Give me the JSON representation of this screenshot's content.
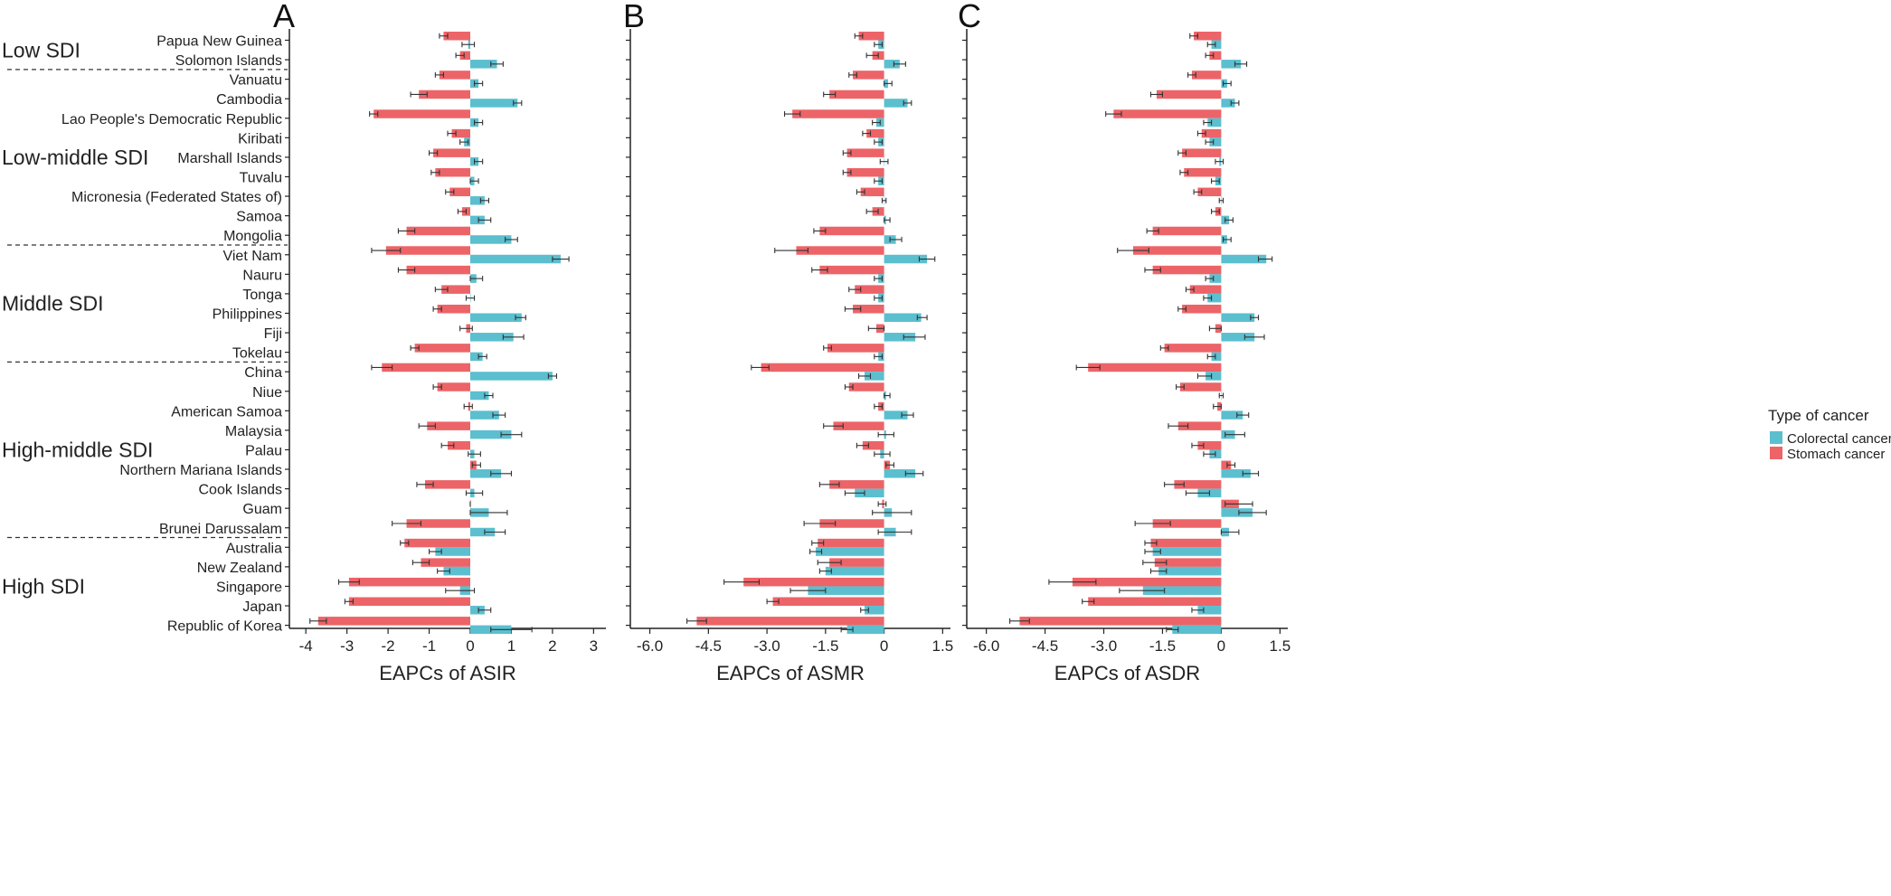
{
  "colors": {
    "colorectal": "#5bbfcf",
    "stomach": "#ec6468"
  },
  "countries": [
    "Papua New Guinea",
    "Solomon Islands",
    "Vanuatu",
    "Cambodia",
    "Lao People's Democratic Republic",
    "Kiribati",
    "Marshall Islands",
    "Tuvalu",
    "Micronesia (Federated States of)",
    "Samoa",
    "Mongolia",
    "Viet Nam",
    "Nauru",
    "Tonga",
    "Philippines",
    "Fiji",
    "Tokelau",
    "China",
    "Niue",
    "American Samoa",
    "Malaysia",
    "Palau",
    "Northern Mariana Islands",
    "Cook Islands",
    "Guam",
    "Brunei Darussalam",
    "Australia",
    "New Zealand",
    "Singapore",
    "Japan",
    "Republic of Korea"
  ],
  "sdi_groups": [
    {
      "label": "Low SDI",
      "first": 0,
      "last": 1
    },
    {
      "label": "Low-middle SDI",
      "first": 2,
      "last": 10
    },
    {
      "label": "Middle SDI",
      "first": 11,
      "last": 16
    },
    {
      "label": "High-middle SDI",
      "first": 17,
      "last": 25
    },
    {
      "label": "High SDI",
      "first": 26,
      "last": 30
    }
  ],
  "legend": {
    "title": "Type of cancer",
    "items": [
      {
        "label": "Colorectal cancer",
        "key": "colorectal"
      },
      {
        "label": "Stomach cancer",
        "key": "stomach"
      }
    ]
  },
  "chart_data": [
    {
      "type": "bar",
      "panel": "A",
      "xlabel": "EAPCs of ASIR",
      "xlim": [
        -4.4,
        3.3
      ],
      "ticks": [
        -4,
        -3,
        -2,
        -1,
        0,
        1,
        2,
        3
      ],
      "tick_labels": [
        "-4",
        "-3",
        "-2",
        "-1",
        "0",
        "1",
        "2",
        "3"
      ],
      "grid": false,
      "series": [
        {
          "name": "Stomach cancer",
          "values": [
            -0.65,
            -0.25,
            -0.75,
            -1.25,
            -2.35,
            -0.45,
            -0.9,
            -0.85,
            -0.5,
            -0.2,
            -1.55,
            -2.05,
            -1.55,
            -0.7,
            -0.8,
            -0.1,
            -1.35,
            -2.15,
            -0.8,
            -0.05,
            -1.05,
            -0.55,
            0.15,
            -1.1,
            0.0,
            -1.55,
            -1.6,
            -1.2,
            -2.95,
            -2.95,
            -3.7
          ],
          "err_low": [
            -0.75,
            -0.35,
            -0.85,
            -1.45,
            -2.45,
            -0.55,
            -1.0,
            -0.95,
            -0.6,
            -0.3,
            -1.75,
            -2.4,
            -1.75,
            -0.85,
            -0.9,
            -0.25,
            -1.45,
            -2.4,
            -0.9,
            -0.15,
            -1.25,
            -0.7,
            0.05,
            -1.3,
            0.0,
            -1.9,
            -1.7,
            -1.4,
            -3.2,
            -3.05,
            -3.9
          ],
          "err_high": [
            -0.55,
            -0.15,
            -0.65,
            -1.05,
            -2.25,
            -0.35,
            -0.8,
            -0.75,
            -0.4,
            -0.1,
            -1.35,
            -1.7,
            -1.35,
            -0.55,
            -0.7,
            0.05,
            -1.25,
            -1.9,
            -0.7,
            0.05,
            -0.85,
            -0.4,
            0.25,
            -0.9,
            0.0,
            -1.2,
            -1.5,
            -1.0,
            -2.7,
            -2.85,
            -3.5
          ]
        },
        {
          "name": "Colorectal cancer",
          "values": [
            -0.05,
            0.65,
            0.2,
            1.15,
            0.2,
            -0.15,
            0.2,
            0.1,
            0.35,
            0.35,
            1.0,
            2.2,
            0.15,
            0.0,
            1.25,
            1.05,
            0.3,
            2.0,
            0.45,
            0.7,
            1.0,
            0.1,
            0.75,
            0.1,
            0.45,
            0.6,
            -0.85,
            -0.65,
            -0.25,
            0.35,
            1.0
          ],
          "err_low": [
            -0.2,
            0.5,
            0.1,
            1.05,
            0.1,
            -0.25,
            0.1,
            0.0,
            0.25,
            0.2,
            0.85,
            2.0,
            0.0,
            -0.1,
            1.1,
            0.8,
            0.2,
            1.9,
            0.35,
            0.55,
            0.75,
            -0.05,
            0.5,
            -0.1,
            0.0,
            0.35,
            -1.0,
            -0.8,
            -0.6,
            0.2,
            0.5
          ],
          "err_high": [
            0.1,
            0.8,
            0.3,
            1.25,
            0.3,
            -0.05,
            0.3,
            0.2,
            0.45,
            0.5,
            1.15,
            2.4,
            0.3,
            0.1,
            1.35,
            1.3,
            0.4,
            2.1,
            0.55,
            0.85,
            1.25,
            0.25,
            1.0,
            0.3,
            0.9,
            0.85,
            -0.7,
            -0.5,
            0.1,
            0.5,
            1.5
          ]
        }
      ]
    },
    {
      "type": "bar",
      "panel": "B",
      "xlabel": "EAPCs of ASMR",
      "xlim": [
        -6.5,
        1.7
      ],
      "ticks": [
        -6.0,
        -4.5,
        -3.0,
        -1.5,
        0,
        1.5
      ],
      "tick_labels": [
        "-6.0",
        "-4.5",
        "-3.0",
        "-1.5",
        "0",
        "1.5"
      ],
      "grid": false,
      "series": [
        {
          "name": "Stomach cancer",
          "values": [
            -0.65,
            -0.3,
            -0.8,
            -1.4,
            -2.35,
            -0.45,
            -0.95,
            -0.95,
            -0.6,
            -0.3,
            -1.65,
            -2.25,
            -1.65,
            -0.75,
            -0.8,
            -0.2,
            -1.45,
            -3.15,
            -0.9,
            -0.15,
            -1.3,
            -0.55,
            0.15,
            -1.4,
            -0.05,
            -1.65,
            -1.7,
            -1.4,
            -3.6,
            -2.85,
            -4.8
          ],
          "err_low": [
            -0.75,
            -0.45,
            -0.9,
            -1.55,
            -2.55,
            -0.55,
            -1.05,
            -1.05,
            -0.7,
            -0.45,
            -1.8,
            -2.8,
            -1.85,
            -0.9,
            -1.0,
            -0.4,
            -1.55,
            -3.4,
            -1.0,
            -0.25,
            -1.55,
            -0.7,
            0.05,
            -1.65,
            -0.15,
            -2.05,
            -1.85,
            -1.7,
            -4.1,
            -3.0,
            -5.05
          ],
          "err_high": [
            -0.55,
            -0.15,
            -0.7,
            -1.25,
            -2.15,
            -0.35,
            -0.85,
            -0.85,
            -0.5,
            -0.15,
            -1.5,
            -1.95,
            -1.45,
            -0.6,
            -0.6,
            0.0,
            -1.35,
            -2.95,
            -0.8,
            -0.05,
            -1.05,
            -0.4,
            0.25,
            -1.15,
            0.05,
            -1.25,
            -1.55,
            -1.1,
            -3.2,
            -2.7,
            -4.55
          ]
        },
        {
          "name": "Colorectal cancer",
          "values": [
            -0.15,
            0.4,
            0.1,
            0.6,
            -0.2,
            -0.15,
            0.0,
            -0.15,
            0.0,
            0.05,
            0.3,
            1.1,
            -0.15,
            -0.15,
            0.95,
            0.8,
            -0.15,
            -0.5,
            0.05,
            0.6,
            0.05,
            -0.1,
            0.8,
            -0.75,
            0.2,
            0.3,
            -1.75,
            -1.5,
            -1.95,
            -0.5,
            -0.95
          ],
          "err_low": [
            -0.25,
            0.25,
            0.0,
            0.5,
            -0.3,
            -0.25,
            -0.1,
            -0.25,
            -0.05,
            0.0,
            0.15,
            0.9,
            -0.25,
            -0.25,
            0.85,
            0.5,
            -0.25,
            -0.65,
            0.0,
            0.45,
            -0.15,
            -0.25,
            0.55,
            -1.0,
            -0.3,
            -0.15,
            -1.9,
            -1.65,
            -2.4,
            -0.6,
            -1.1
          ],
          "err_high": [
            -0.05,
            0.55,
            0.2,
            0.7,
            -0.1,
            -0.05,
            0.1,
            -0.05,
            0.05,
            0.15,
            0.45,
            1.3,
            -0.05,
            -0.05,
            1.1,
            1.05,
            -0.05,
            -0.35,
            0.15,
            0.75,
            0.25,
            0.15,
            1.0,
            -0.5,
            0.7,
            0.7,
            -1.6,
            -1.35,
            -1.5,
            -0.4,
            -0.8
          ]
        }
      ]
    },
    {
      "type": "bar",
      "panel": "C",
      "xlabel": "EAPCs of ASDR",
      "xlim": [
        -6.5,
        1.7
      ],
      "ticks": [
        -6.0,
        -4.5,
        -3.0,
        -1.5,
        0,
        1.5
      ],
      "tick_labels": [
        "-6.0",
        "-4.5",
        "-3.0",
        "-1.5",
        "0",
        "1.5"
      ],
      "grid": false,
      "series": [
        {
          "name": "Stomach cancer",
          "values": [
            -0.7,
            -0.3,
            -0.75,
            -1.65,
            -2.75,
            -0.5,
            -1.0,
            -0.95,
            -0.6,
            -0.15,
            -1.75,
            -2.25,
            -1.75,
            -0.8,
            -1.0,
            -0.15,
            -1.45,
            -3.4,
            -1.05,
            -0.1,
            -1.1,
            -0.6,
            0.25,
            -1.2,
            0.45,
            -1.75,
            -1.8,
            -1.7,
            -3.8,
            -3.4,
            -5.15
          ],
          "err_low": [
            -0.8,
            -0.4,
            -0.85,
            -1.8,
            -2.95,
            -0.6,
            -1.1,
            -1.05,
            -0.7,
            -0.25,
            -1.9,
            -2.65,
            -1.95,
            -0.9,
            -1.1,
            -0.3,
            -1.55,
            -3.7,
            -1.15,
            -0.2,
            -1.35,
            -0.75,
            0.15,
            -1.45,
            0.1,
            -2.2,
            -1.95,
            -2.0,
            -4.4,
            -3.55,
            -5.4
          ],
          "err_high": [
            -0.6,
            -0.2,
            -0.65,
            -1.5,
            -2.55,
            -0.4,
            -0.9,
            -0.85,
            -0.5,
            -0.05,
            -1.6,
            -1.85,
            -1.55,
            -0.7,
            -0.9,
            0.0,
            -1.35,
            -3.1,
            -0.95,
            0.0,
            -0.85,
            -0.45,
            0.35,
            -0.95,
            0.8,
            -1.3,
            -1.65,
            -1.4,
            -3.2,
            -3.25,
            -4.9
          ]
        },
        {
          "name": "Colorectal cancer",
          "values": [
            -0.25,
            0.5,
            0.15,
            0.35,
            -0.35,
            -0.3,
            -0.05,
            -0.15,
            0.0,
            0.2,
            0.15,
            1.15,
            -0.3,
            -0.35,
            0.85,
            0.85,
            -0.25,
            -0.4,
            0.0,
            0.55,
            0.35,
            -0.3,
            0.75,
            -0.6,
            0.8,
            0.2,
            -1.75,
            -1.6,
            -2.0,
            -0.6,
            -1.25
          ],
          "err_low": [
            -0.35,
            0.35,
            0.05,
            0.25,
            -0.45,
            -0.4,
            -0.15,
            -0.25,
            -0.05,
            0.1,
            0.05,
            0.95,
            -0.4,
            -0.45,
            0.75,
            0.6,
            -0.35,
            -0.6,
            -0.05,
            0.4,
            0.1,
            -0.45,
            0.55,
            -0.9,
            0.45,
            0.0,
            -1.95,
            -1.8,
            -2.6,
            -0.75,
            -1.4
          ],
          "err_high": [
            -0.15,
            0.65,
            0.25,
            0.45,
            -0.25,
            -0.2,
            0.05,
            -0.05,
            0.05,
            0.3,
            0.25,
            1.3,
            -0.2,
            -0.25,
            0.95,
            1.1,
            -0.15,
            -0.25,
            0.05,
            0.7,
            0.6,
            -0.15,
            0.95,
            -0.3,
            1.15,
            0.45,
            -1.55,
            -1.4,
            -1.45,
            -0.45,
            -1.1
          ]
        }
      ]
    }
  ]
}
